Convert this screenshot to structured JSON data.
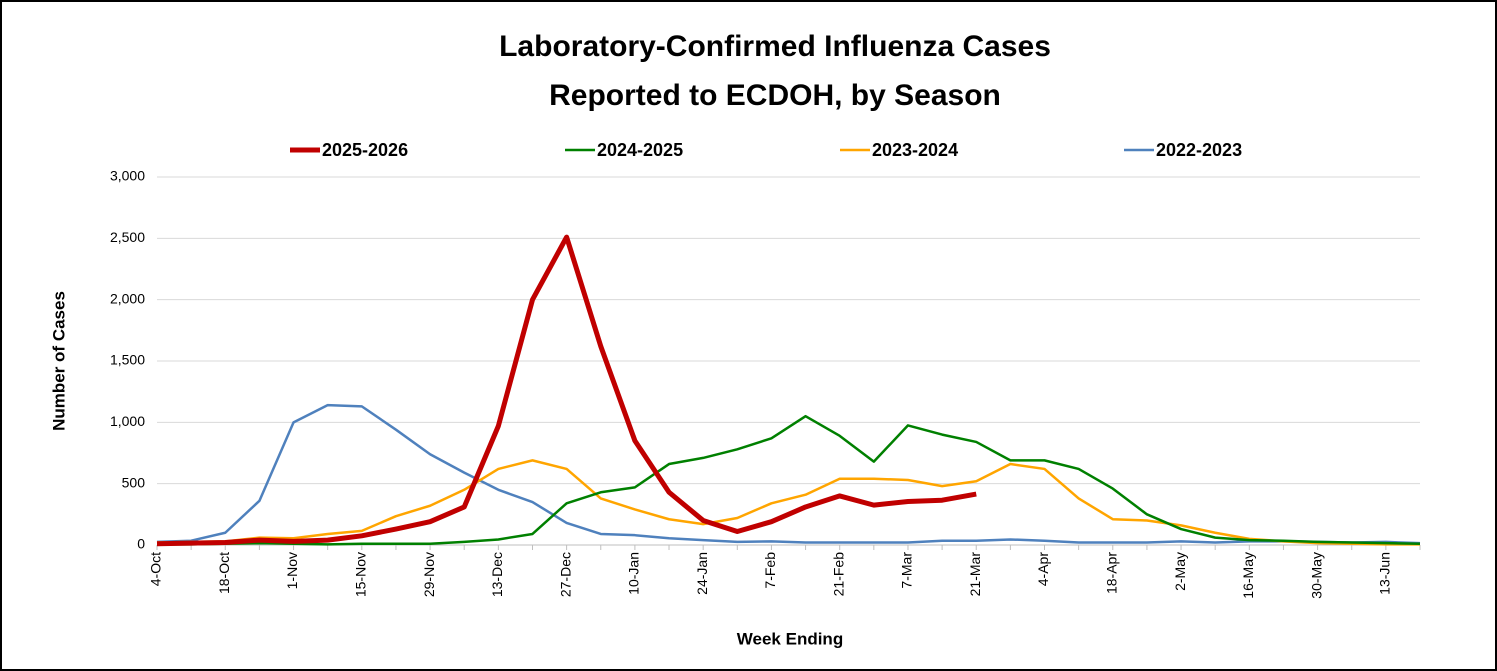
{
  "chart_data": {
    "type": "line",
    "title": [
      "Laboratory-Confirmed Influenza Cases",
      "Reported to ECDOH, by Season"
    ],
    "x_label": "Week Ending",
    "y_label": "Number of Cases",
    "categories": [
      "4-Oct",
      null,
      "18-Oct",
      null,
      "1-Nov",
      null,
      "15-Nov",
      null,
      "29-Nov",
      null,
      "13-Dec",
      null,
      "27-Dec",
      null,
      "10-Jan",
      null,
      "24-Jan",
      null,
      "7-Feb",
      null,
      "21-Feb",
      null,
      "7-Mar",
      null,
      "21-Mar",
      null,
      "4-Apr",
      null,
      "18-Apr",
      null,
      "2-May",
      null,
      "16-May",
      null,
      "30-May",
      null,
      "13-Jun",
      null
    ],
    "ylim": [
      0,
      3000
    ],
    "yticks": [
      0,
      500,
      {
        "value": 1000,
        "label": "1,000"
      },
      {
        "value": 1500,
        "label": "1,500"
      },
      {
        "value": 2000,
        "label": "2,000"
      },
      {
        "value": 2500,
        "label": "2,500"
      },
      {
        "value": 3000,
        "label": "3,000"
      }
    ],
    "grid": true,
    "legend": "top",
    "series": [
      {
        "name": "2025-2026",
        "color": "#c00000",
        "values": [
          10,
          15,
          20,
          40,
          30,
          40,
          75,
          130,
          190,
          310,
          970,
          2000,
          2510,
          1620,
          850,
          430,
          200,
          110,
          190,
          310,
          400,
          325,
          355,
          365,
          415,
          null,
          null,
          null,
          null,
          null,
          null,
          null,
          null,
          null,
          null,
          null,
          null,
          null
        ]
      },
      {
        "name": "2024-2025",
        "color": "#008000",
        "values": [
          5,
          5,
          10,
          15,
          10,
          5,
          10,
          10,
          10,
          25,
          45,
          90,
          340,
          430,
          470,
          660,
          710,
          780,
          870,
          1050,
          890,
          680,
          975,
          900,
          840,
          690,
          690,
          620,
          460,
          250,
          130,
          60,
          40,
          35,
          25,
          20,
          15,
          10
        ]
      },
      {
        "name": "2023-2024",
        "color": "#ffa500",
        "values": [
          20,
          25,
          30,
          60,
          55,
          90,
          115,
          235,
          320,
          450,
          620,
          690,
          620,
          380,
          290,
          210,
          170,
          220,
          340,
          410,
          540,
          540,
          530,
          480,
          520,
          660,
          620,
          380,
          210,
          200,
          160,
          100,
          50,
          30,
          15,
          10,
          5,
          5
        ]
      },
      {
        "name": "2022-2023",
        "color": "#4f81bd",
        "values": [
          25,
          35,
          100,
          360,
          1000,
          1140,
          1130,
          940,
          740,
          590,
          450,
          350,
          180,
          90,
          80,
          55,
          40,
          25,
          30,
          20,
          20,
          20,
          20,
          35,
          35,
          45,
          35,
          20,
          20,
          20,
          30,
          20,
          30,
          30,
          25,
          20,
          25,
          15
        ]
      }
    ]
  }
}
